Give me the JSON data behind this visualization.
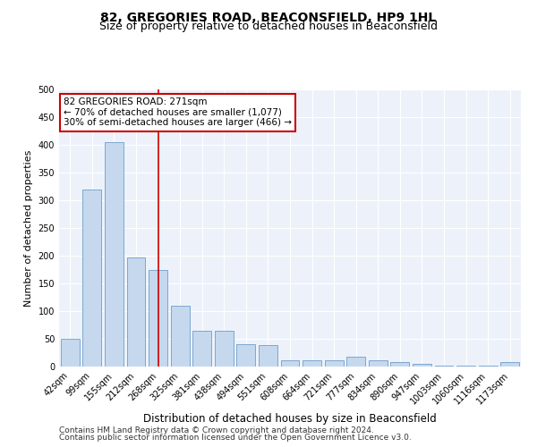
{
  "title": "82, GREGORIES ROAD, BEACONSFIELD, HP9 1HL",
  "subtitle": "Size of property relative to detached houses in Beaconsfield",
  "xlabel": "Distribution of detached houses by size in Beaconsfield",
  "ylabel": "Number of detached properties",
  "categories": [
    "42sqm",
    "99sqm",
    "155sqm",
    "212sqm",
    "268sqm",
    "325sqm",
    "381sqm",
    "438sqm",
    "494sqm",
    "551sqm",
    "608sqm",
    "664sqm",
    "721sqm",
    "777sqm",
    "834sqm",
    "890sqm",
    "947sqm",
    "1003sqm",
    "1060sqm",
    "1116sqm",
    "1173sqm"
  ],
  "values": [
    50,
    320,
    405,
    197,
    175,
    110,
    65,
    65,
    40,
    38,
    12,
    12,
    12,
    18,
    12,
    8,
    5,
    2,
    1,
    1,
    8
  ],
  "bar_color": "#c5d8ed",
  "bar_edge_color": "#5b8ec4",
  "annotation_text": "82 GREGORIES ROAD: 271sqm\n← 70% of detached houses are smaller (1,077)\n30% of semi-detached houses are larger (466) →",
  "annotation_box_color": "#ffffff",
  "annotation_box_edge_color": "#cc0000",
  "vline_color": "#cc0000",
  "vline_x": 4,
  "ylim": [
    0,
    500
  ],
  "yticks": [
    0,
    50,
    100,
    150,
    200,
    250,
    300,
    350,
    400,
    450,
    500
  ],
  "footnote1": "Contains HM Land Registry data © Crown copyright and database right 2024.",
  "footnote2": "Contains public sector information licensed under the Open Government Licence v3.0.",
  "plot_background": "#edf2fa",
  "title_fontsize": 10,
  "subtitle_fontsize": 9,
  "xlabel_fontsize": 8.5,
  "ylabel_fontsize": 8,
  "tick_fontsize": 7,
  "annotation_fontsize": 7.5,
  "footnote_fontsize": 6.5
}
